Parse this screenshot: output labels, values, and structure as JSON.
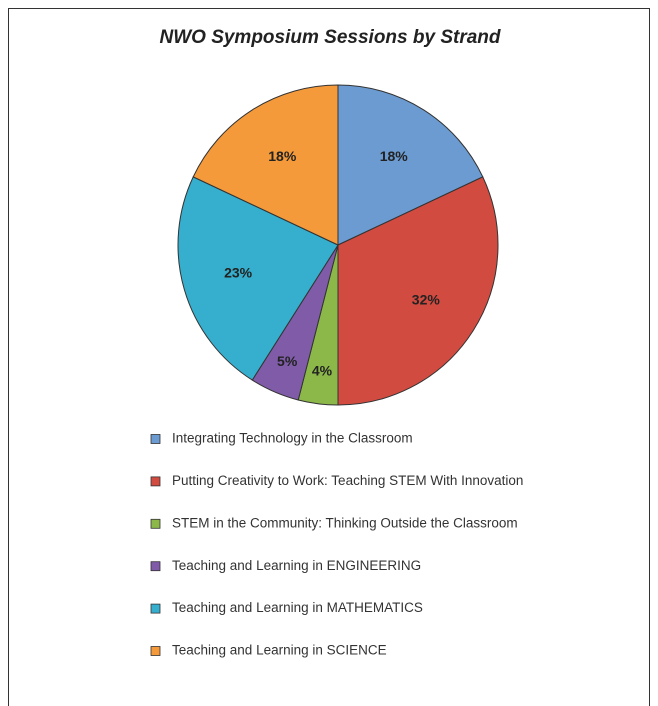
{
  "chart_data": {
    "type": "pie",
    "title": "NWO Symposium Sessions by Strand",
    "categories": [
      "Integrating Technology in the Classroom",
      "Putting Creativity to Work: Teaching STEM With Innovation",
      "STEM in the Community: Thinking Outside the Classroom",
      "Teaching and Learning in ENGINEERING",
      "Teaching and Learning in MATHEMATICS",
      "Teaching and Learning in SCIENCE"
    ],
    "values": [
      18,
      32,
      4,
      5,
      23,
      18
    ],
    "value_labels": [
      "18%",
      "32%",
      "4%",
      "5%",
      "23%",
      "18%"
    ],
    "colors": [
      "#6b9bd1",
      "#d24b40",
      "#8cb84a",
      "#7f5ba8",
      "#35afcd",
      "#f59a3b"
    ],
    "legend": "bottom"
  }
}
